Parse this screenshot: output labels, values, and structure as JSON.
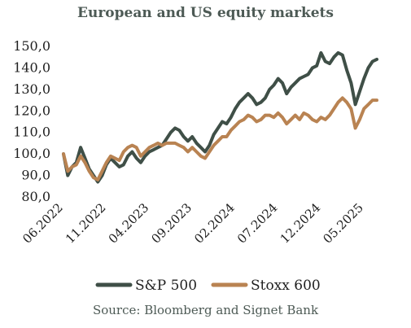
{
  "chart_data": {
    "type": "line",
    "title": "European and US equity markets",
    "source": "Source: Bloomberg and Signet Bank",
    "ylim": [
      80,
      150
    ],
    "y_ticks": [
      "150,0",
      "140,0",
      "130,0",
      "120,0",
      "110,0",
      "100,0",
      "90,0",
      "80,0"
    ],
    "x_ticks": [
      "06.2022",
      "11.2022",
      "04.2023",
      "09.2023",
      "02.2024",
      "07.2024",
      "12.2024",
      "05.2025"
    ],
    "grid": false,
    "legend_position": "bottom",
    "x": [
      "2022-06-01",
      "2022-06-15",
      "2022-07-01",
      "2022-07-15",
      "2022-08-01",
      "2022-08-15",
      "2022-09-01",
      "2022-09-15",
      "2022-10-01",
      "2022-10-15",
      "2022-11-01",
      "2022-11-15",
      "2022-12-01",
      "2022-12-15",
      "2023-01-01",
      "2023-01-15",
      "2023-02-01",
      "2023-02-15",
      "2023-03-01",
      "2023-03-15",
      "2023-04-01",
      "2023-04-15",
      "2023-05-01",
      "2023-05-15",
      "2023-06-01",
      "2023-06-15",
      "2023-07-01",
      "2023-07-15",
      "2023-08-01",
      "2023-08-15",
      "2023-09-01",
      "2023-09-15",
      "2023-10-01",
      "2023-10-15",
      "2023-11-01",
      "2023-11-15",
      "2023-12-01",
      "2023-12-15",
      "2024-01-01",
      "2024-01-15",
      "2024-02-01",
      "2024-02-15",
      "2024-03-01",
      "2024-03-15",
      "2024-04-01",
      "2024-04-15",
      "2024-05-01",
      "2024-05-15",
      "2024-06-01",
      "2024-06-15",
      "2024-07-01",
      "2024-07-15",
      "2024-08-01",
      "2024-08-15",
      "2024-09-01",
      "2024-09-15",
      "2024-10-01",
      "2024-10-15",
      "2024-11-01",
      "2024-11-15",
      "2024-12-01",
      "2024-12-15",
      "2025-01-01",
      "2025-01-15",
      "2025-02-01",
      "2025-02-15",
      "2025-03-01",
      "2025-03-15",
      "2025-04-01",
      "2025-04-15",
      "2025-05-01",
      "2025-05-15",
      "2025-06-01",
      "2025-06-15"
    ],
    "series": [
      {
        "name": "S&P 500",
        "color": "#3f4f47",
        "values": [
          100,
          90,
          94,
          96,
          103,
          98,
          93,
          90,
          87,
          90,
          95,
          98,
          96,
          94,
          95,
          99,
          101,
          98,
          96,
          99,
          101,
          102,
          103,
          104,
          107,
          110,
          112,
          111,
          108,
          106,
          108,
          105,
          103,
          101,
          104,
          109,
          112,
          115,
          114,
          117,
          121,
          124,
          126,
          128,
          126,
          123,
          124,
          126,
          130,
          132,
          135,
          133,
          128,
          131,
          133,
          135,
          136,
          137,
          140,
          141,
          147,
          143,
          142,
          145,
          147,
          146,
          139,
          133,
          123,
          129,
          135,
          140,
          143,
          144
        ]
      },
      {
        "name": "Stoxx 600",
        "color": "#b98352",
        "values": [
          100,
          92,
          94,
          95,
          99,
          96,
          92,
          89,
          88,
          92,
          96,
          99,
          98,
          97,
          101,
          103,
          104,
          103,
          99,
          101,
          103,
          104,
          105,
          104,
          105,
          105,
          105,
          104,
          103,
          101,
          103,
          101,
          99,
          98,
          101,
          104,
          106,
          108,
          108,
          111,
          113,
          115,
          116,
          118,
          117,
          115,
          116,
          118,
          118,
          117,
          119,
          117,
          114,
          116,
          118,
          116,
          119,
          118,
          116,
          115,
          117,
          116,
          118,
          121,
          124,
          126,
          124,
          121,
          112,
          116,
          121,
          123,
          125,
          125
        ]
      }
    ]
  }
}
